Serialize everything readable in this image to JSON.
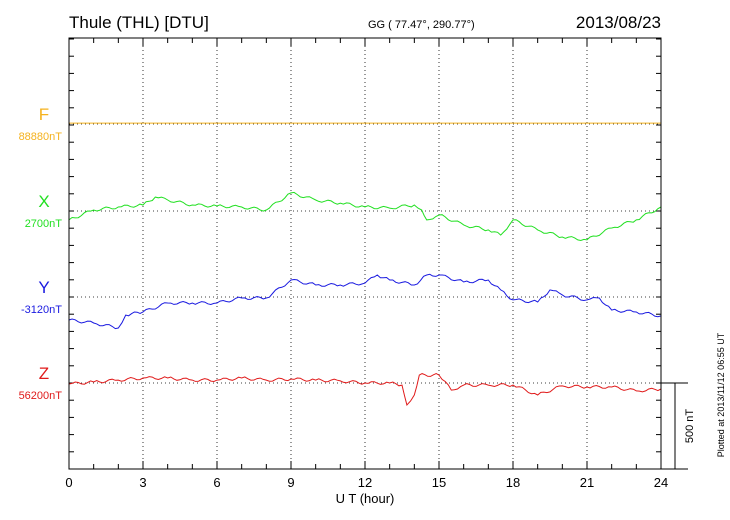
{
  "header": {
    "station": "Thule (THL)  [DTU]",
    "coords": "GG ( 77.47°, 290.77°)",
    "date": "2013/08/23"
  },
  "footer": {
    "plotted": "Plotted at 2013/11/12 06:55 UT",
    "scale_label": "500 nT"
  },
  "chart_data": {
    "type": "line",
    "xlabel": "U T (hour)",
    "xlim": [
      0,
      24
    ],
    "xticks": [
      "0",
      "3",
      "6",
      "9",
      "12",
      "15",
      "18",
      "21",
      "24"
    ],
    "scale_nT_per_panel": 500,
    "minor_tick_nT": 100,
    "series": [
      {
        "name": "F",
        "baseline_label": "88880nT",
        "color": "#f5b21e",
        "x": [
          0,
          24
        ],
        "values": [
          5,
          5
        ]
      },
      {
        "name": "X",
        "baseline_label": "2700nT",
        "color": "#22e022",
        "x": [
          0,
          1,
          2,
          3,
          3.5,
          4,
          5,
          6,
          7,
          8,
          9,
          10,
          11,
          12,
          13,
          14,
          14.3,
          14.5,
          15,
          16,
          17,
          17.5,
          18,
          19,
          20,
          21,
          22,
          23,
          24
        ],
        "values": [
          -52,
          6,
          23,
          35,
          81,
          64,
          35,
          29,
          23,
          6,
          105,
          64,
          46,
          23,
          17,
          35,
          6,
          -52,
          -23,
          -81,
          -110,
          -140,
          -52,
          -110,
          -151,
          -168,
          -99,
          -52,
          23
        ]
      },
      {
        "name": "Y",
        "baseline_label": "-3120nT",
        "color": "#1a1ae0",
        "x": [
          0,
          1,
          2,
          2.3,
          3,
          4,
          5,
          6,
          7,
          8,
          9,
          10,
          11,
          12,
          12.5,
          13,
          14,
          14.5,
          15,
          16,
          17,
          17.5,
          18,
          19,
          19.5,
          20,
          21,
          21.5,
          22,
          23,
          24
        ],
        "values": [
          -134,
          -151,
          -180,
          -105,
          -87,
          -35,
          -35,
          -35,
          -6,
          -6,
          99,
          70,
          70,
          81,
          128,
          99,
          70,
          128,
          128,
          87,
          99,
          41,
          -17,
          -29,
          41,
          12,
          -17,
          -6,
          -76,
          -87,
          -110
        ]
      },
      {
        "name": "Z",
        "baseline_label": "56200nT",
        "color": "#e01a1a",
        "x": [
          0,
          1,
          2,
          3,
          4,
          5,
          6,
          7,
          8,
          9,
          10,
          11,
          12,
          13,
          13.5,
          13.7,
          14,
          14.2,
          15,
          15.5,
          16,
          17,
          18,
          19,
          20,
          21,
          22,
          23,
          24
        ],
        "values": [
          -6,
          6,
          17,
          29,
          29,
          17,
          17,
          29,
          17,
          23,
          17,
          12,
          0,
          0,
          -12,
          -128,
          -70,
          46,
          46,
          -41,
          -12,
          -12,
          -12,
          -70,
          -17,
          -23,
          -23,
          -46,
          -35
        ]
      }
    ]
  }
}
